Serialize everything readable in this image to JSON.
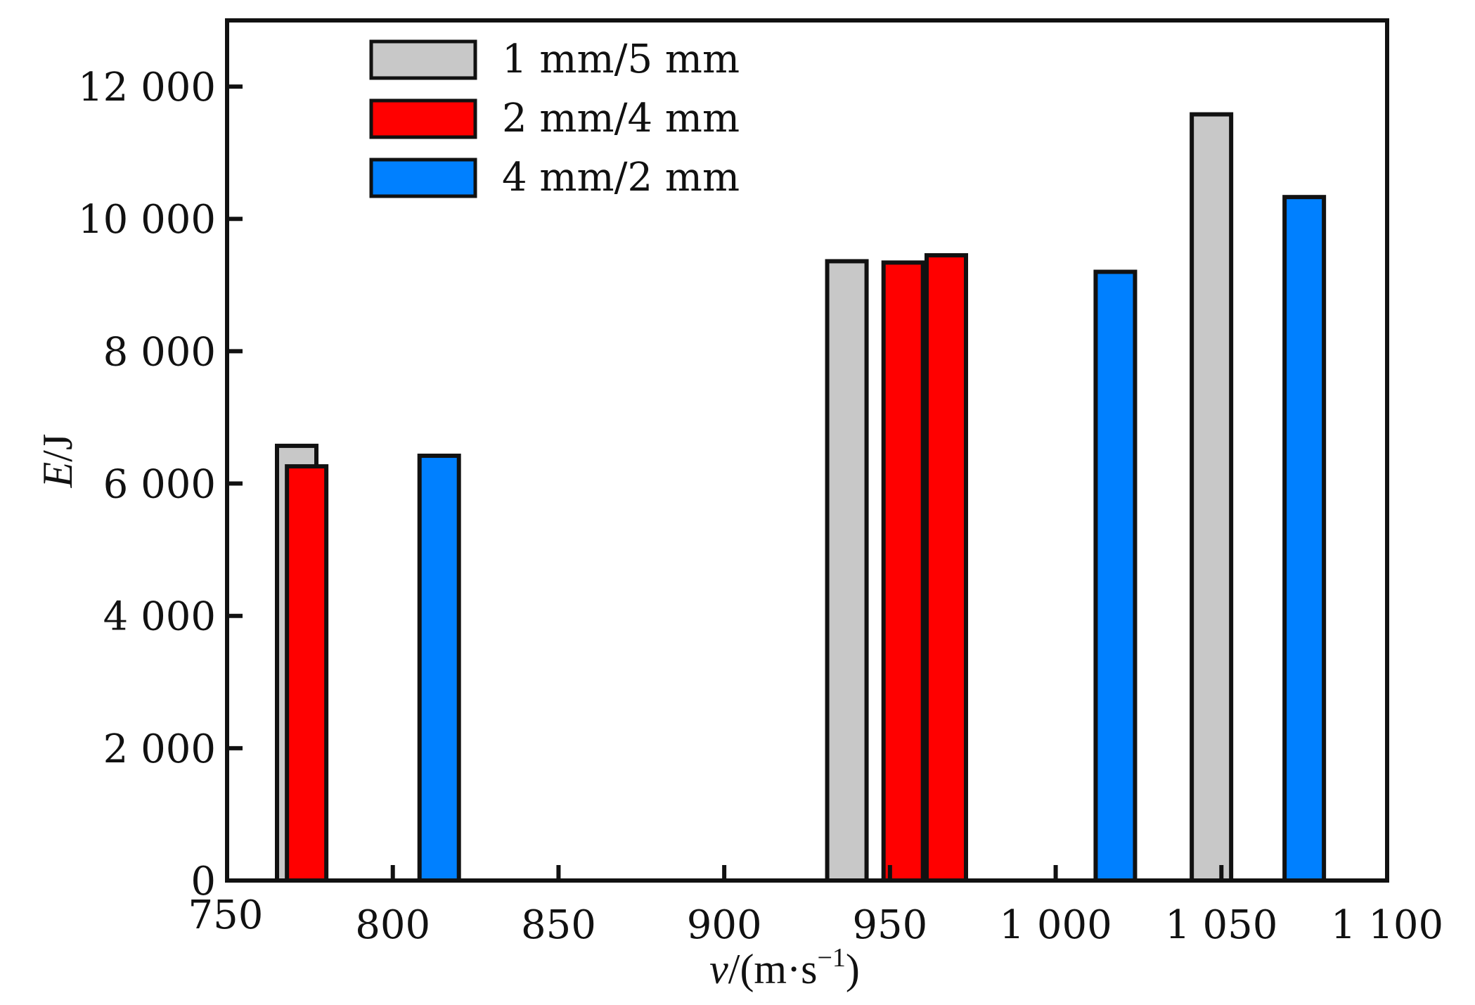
{
  "chart_data": {
    "type": "bar",
    "xlabel_parts": {
      "var": "v",
      "unit_pre": "/(m·s",
      "unit_sup": "−1",
      "unit_post": ")"
    },
    "ylabel_parts": {
      "var": "E",
      "unit": "/J"
    },
    "xlim": [
      750,
      1100
    ],
    "ylim": [
      0,
      13000
    ],
    "x_ticks": [
      750,
      800,
      850,
      900,
      950,
      1000,
      1050,
      1100
    ],
    "x_tick_labels": [
      "750",
      "800",
      "850",
      "900",
      "950",
      "1 000",
      "1 050",
      "1 100"
    ],
    "y_ticks": [
      0,
      2000,
      4000,
      6000,
      8000,
      10000,
      12000
    ],
    "y_tick_labels": [
      "0",
      "2 000",
      "4 000",
      "6 000",
      "8 000",
      "10 000",
      "12 000"
    ],
    "legend_position": "top-left",
    "grid": false,
    "series": [
      {
        "name": "1 mm/5 mm",
        "color": "#c8c8c8",
        "points": [
          {
            "x": 771,
            "y": 6570
          },
          {
            "x": 937,
            "y": 9360
          },
          {
            "x": 1047,
            "y": 11580
          }
        ]
      },
      {
        "name": "2 mm/4 mm",
        "color": "#ff0000",
        "points": [
          {
            "x": 774,
            "y": 6260
          },
          {
            "x": 954,
            "y": 9340
          },
          {
            "x": 967,
            "y": 9450
          }
        ]
      },
      {
        "name": "4 mm/2 mm",
        "color": "#0080ff",
        "points": [
          {
            "x": 814,
            "y": 6420
          },
          {
            "x": 1018,
            "y": 9200
          },
          {
            "x": 1075,
            "y": 10330
          }
        ]
      }
    ]
  }
}
